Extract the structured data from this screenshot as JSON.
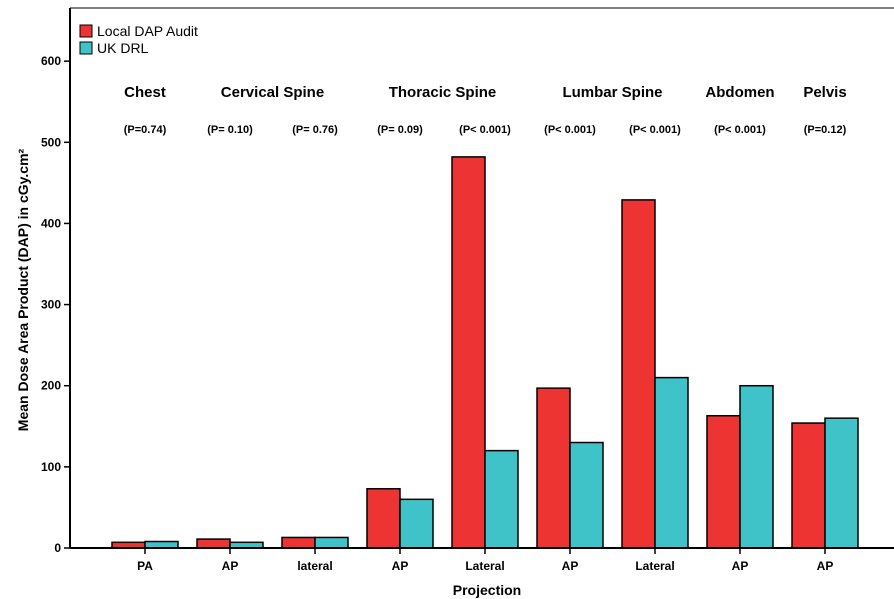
{
  "chart_data": {
    "type": "bar",
    "xlabel": "Projection",
    "ylabel": "Mean Dose Area Product (DAP) in cGy.cm²",
    "ylim": [
      0,
      650
    ],
    "yticks": [
      0,
      100,
      200,
      300,
      400,
      500,
      600
    ],
    "grid": false,
    "legend_position": "top-left",
    "categories": [
      "PA",
      "AP",
      "lateral",
      "AP",
      "Lateral",
      "AP",
      "Lateral",
      "AP",
      "AP"
    ],
    "series": [
      {
        "name": "Local DAP Audit",
        "color": "#ee3333",
        "values": [
          7,
          11,
          13,
          73,
          482,
          197,
          429,
          163,
          154
        ]
      },
      {
        "name": "UK DRL",
        "color": "#3fc3c9",
        "values": [
          8,
          7,
          13,
          60,
          120,
          130,
          210,
          200,
          160
        ]
      }
    ],
    "groups": [
      {
        "label": "Chest",
        "categories": [
          0
        ]
      },
      {
        "label": "Cervical Spine",
        "categories": [
          1,
          2
        ]
      },
      {
        "label": "Thoracic Spine",
        "categories": [
          3,
          4
        ]
      },
      {
        "label": "Lumbar Spine",
        "categories": [
          5,
          6
        ]
      },
      {
        "label": "Abdomen",
        "categories": [
          7
        ]
      },
      {
        "label": "Pelvis",
        "categories": [
          8
        ]
      }
    ],
    "p_values": [
      "(P=0.74)",
      "(P= 0.10)",
      "(P= 0.76)",
      "(P= 0.09)",
      "(P< 0.001)",
      "(P< 0.001)",
      "(P< 0.001)",
      "(P< 0.001)",
      "(P=0.12)"
    ]
  }
}
